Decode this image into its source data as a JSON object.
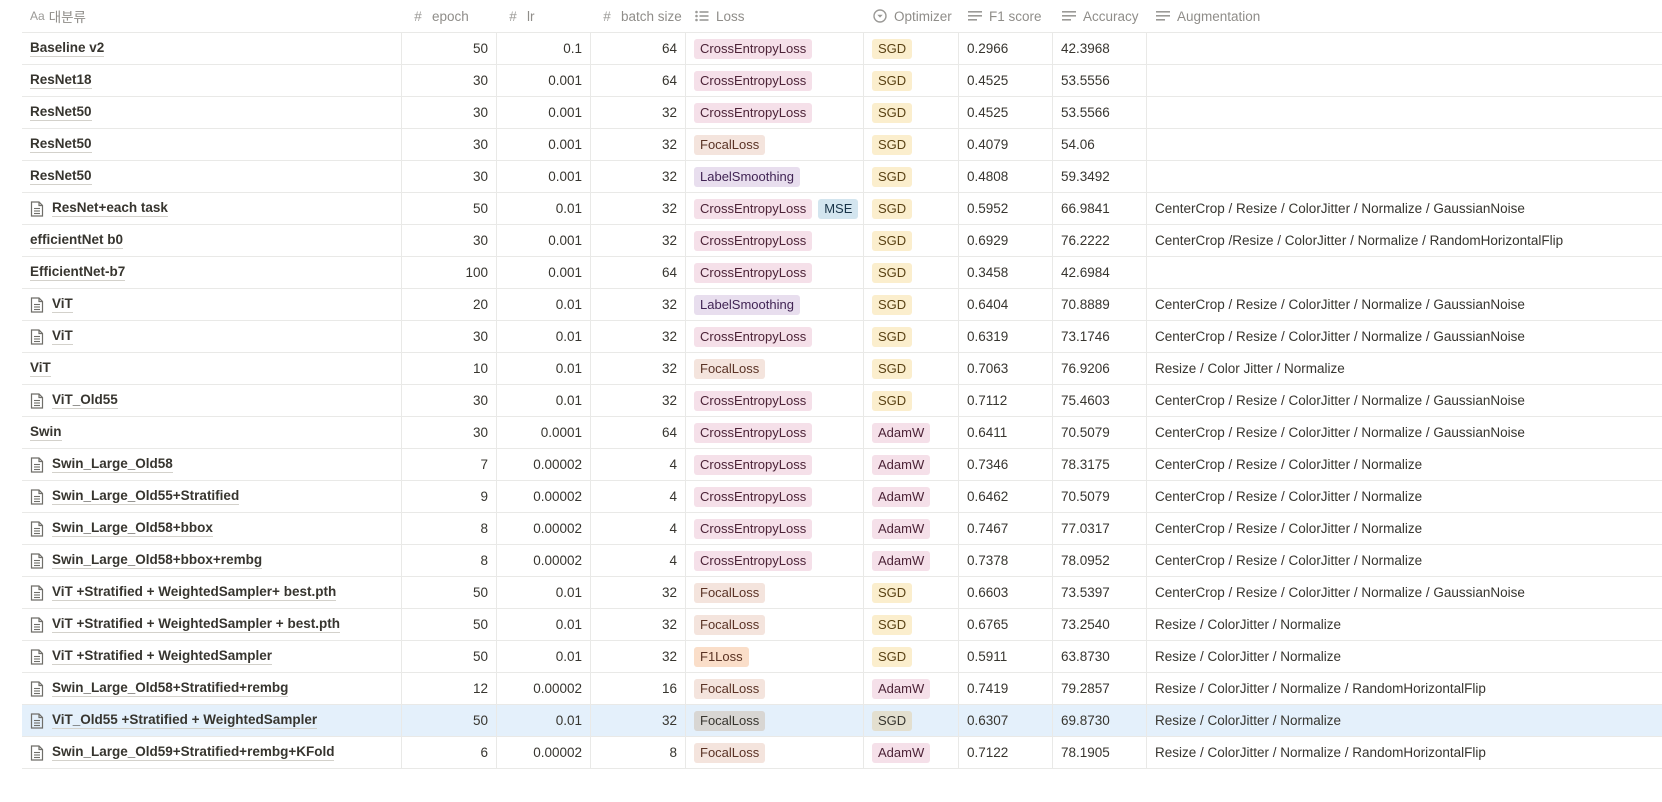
{
  "columns": [
    {
      "key": "name",
      "label": "대분류",
      "icon": "title-icon"
    },
    {
      "key": "epoch",
      "label": "epoch",
      "icon": "number-icon"
    },
    {
      "key": "lr",
      "label": "lr",
      "icon": "number-icon"
    },
    {
      "key": "batch_size",
      "label": "batch size",
      "icon": "number-icon"
    },
    {
      "key": "loss",
      "label": "Loss",
      "icon": "multi-select-icon"
    },
    {
      "key": "optimizer",
      "label": "Optimizer",
      "icon": "select-icon"
    },
    {
      "key": "f1",
      "label": "F1 score",
      "icon": "text-icon"
    },
    {
      "key": "accuracy",
      "label": "Accuracy",
      "icon": "text-icon"
    },
    {
      "key": "augmentation",
      "label": "Augmentation",
      "icon": "text-icon"
    }
  ],
  "header": {
    "title_prefix": "Aa"
  },
  "rows": [
    {
      "name": "Baseline v2",
      "doc": false,
      "epoch": "50",
      "lr": "0.1",
      "batch_size": "64",
      "loss": [
        "CrossEntropyLoss"
      ],
      "optimizer": "SGD",
      "f1": "0.2966",
      "accuracy": "42.3968",
      "augmentation": ""
    },
    {
      "name": "ResNet18",
      "doc": false,
      "epoch": "30",
      "lr": "0.001",
      "batch_size": "64",
      "loss": [
        "CrossEntropyLoss"
      ],
      "optimizer": "SGD",
      "f1": "0.4525",
      "accuracy": "53.5556",
      "augmentation": ""
    },
    {
      "name": "ResNet50",
      "doc": false,
      "epoch": "30",
      "lr": "0.001",
      "batch_size": "32",
      "loss": [
        "CrossEntropyLoss"
      ],
      "optimizer": "SGD",
      "f1": "0.4525",
      "accuracy": "53.5566",
      "augmentation": ""
    },
    {
      "name": "ResNet50",
      "doc": false,
      "epoch": "30",
      "lr": "0.001",
      "batch_size": "32",
      "loss": [
        "FocalLoss"
      ],
      "optimizer": "SGD",
      "f1": "0.4079",
      "accuracy": "54.06",
      "augmentation": ""
    },
    {
      "name": "ResNet50",
      "doc": false,
      "epoch": "30",
      "lr": "0.001",
      "batch_size": "32",
      "loss": [
        "LabelSmoothing"
      ],
      "optimizer": "SGD",
      "f1": "0.4808",
      "accuracy": "59.3492",
      "augmentation": ""
    },
    {
      "name": "ResNet+each task",
      "doc": true,
      "epoch": "50",
      "lr": "0.01",
      "batch_size": "32",
      "loss": [
        "CrossEntropyLoss",
        "MSE"
      ],
      "optimizer": "SGD",
      "f1": "0.5952",
      "accuracy": "66.9841",
      "augmentation": "CenterCrop / Resize / ColorJitter / Normalize / GaussianNoise"
    },
    {
      "name": "efficientNet b0",
      "doc": false,
      "epoch": "30",
      "lr": "0.001",
      "batch_size": "32",
      "loss": [
        "CrossEntropyLoss"
      ],
      "optimizer": "SGD",
      "f1": "0.6929",
      "accuracy": "76.2222",
      "augmentation": "CenterCrop  /Resize / ColorJitter / Normalize / RandomHorizontalFlip"
    },
    {
      "name": "EfficientNet-b7",
      "doc": false,
      "epoch": "100",
      "lr": "0.001",
      "batch_size": "64",
      "loss": [
        "CrossEntropyLoss"
      ],
      "optimizer": "SGD",
      "f1": "0.3458",
      "accuracy": "42.6984",
      "augmentation": ""
    },
    {
      "name": "ViT",
      "doc": true,
      "epoch": "20",
      "lr": "0.01",
      "batch_size": "32",
      "loss": [
        "LabelSmoothing"
      ],
      "optimizer": "SGD",
      "f1": "0.6404",
      "accuracy": "70.8889",
      "augmentation": "CenterCrop / Resize / ColorJitter / Normalize / GaussianNoise"
    },
    {
      "name": "ViT",
      "doc": true,
      "epoch": "30",
      "lr": "0.01",
      "batch_size": "32",
      "loss": [
        "CrossEntropyLoss"
      ],
      "optimizer": "SGD",
      "f1": "0.6319",
      "accuracy": "73.1746",
      "augmentation": "CenterCrop / Resize / ColorJitter / Normalize / GaussianNoise"
    },
    {
      "name": "ViT",
      "doc": false,
      "epoch": "10",
      "lr": "0.01",
      "batch_size": "32",
      "loss": [
        "FocalLoss"
      ],
      "optimizer": "SGD",
      "f1": "0.7063",
      "accuracy": "76.9206",
      "augmentation": "Resize / Color Jitter / Normalize"
    },
    {
      "name": "ViT_Old55",
      "doc": true,
      "epoch": "30",
      "lr": "0.01",
      "batch_size": "32",
      "loss": [
        "CrossEntropyLoss"
      ],
      "optimizer": "SGD",
      "f1": "0.7112",
      "accuracy": "75.4603",
      "augmentation": "CenterCrop / Resize / ColorJitter / Normalize / GaussianNoise"
    },
    {
      "name": "Swin",
      "doc": false,
      "epoch": "30",
      "lr": "0.0001",
      "batch_size": "64",
      "loss": [
        "CrossEntropyLoss"
      ],
      "optimizer": "AdamW",
      "f1": "0.6411",
      "accuracy": "70.5079",
      "augmentation": "CenterCrop / Resize / ColorJitter / Normalize / GaussianNoise"
    },
    {
      "name": "Swin_Large_Old58",
      "doc": true,
      "epoch": "7",
      "lr": "0.00002",
      "batch_size": "4",
      "loss": [
        "CrossEntropyLoss"
      ],
      "optimizer": "AdamW",
      "f1": "0.7346",
      "accuracy": "78.3175",
      "augmentation": "CenterCrop / Resize / ColorJitter / Normalize"
    },
    {
      "name": "Swin_Large_Old55+Stratified",
      "doc": true,
      "epoch": "9",
      "lr": "0.00002",
      "batch_size": "4",
      "loss": [
        "CrossEntropyLoss"
      ],
      "optimizer": "AdamW",
      "f1": "0.6462",
      "accuracy": "70.5079",
      "augmentation": "CenterCrop / Resize / ColorJitter / Normalize"
    },
    {
      "name": "Swin_Large_Old58+bbox",
      "doc": true,
      "epoch": "8",
      "lr": "0.00002",
      "batch_size": "4",
      "loss": [
        "CrossEntropyLoss"
      ],
      "optimizer": "AdamW",
      "f1": "0.7467",
      "accuracy": "77.0317",
      "augmentation": "CenterCrop / Resize / ColorJitter / Normalize"
    },
    {
      "name": "Swin_Large_Old58+bbox+rembg",
      "doc": true,
      "epoch": "8",
      "lr": "0.00002",
      "batch_size": "4",
      "loss": [
        "CrossEntropyLoss"
      ],
      "optimizer": "AdamW",
      "f1": "0.7378",
      "accuracy": "78.0952",
      "augmentation": "CenterCrop / Resize / ColorJitter / Normalize"
    },
    {
      "name": "ViT +Stratified + WeightedSampler+ best.pth",
      "doc": true,
      "epoch": "50",
      "lr": "0.01",
      "batch_size": "32",
      "loss": [
        "FocalLoss"
      ],
      "optimizer": "SGD",
      "f1": "0.6603",
      "accuracy": "73.5397",
      "augmentation": "CenterCrop / Resize / ColorJitter / Normalize / GaussianNoise"
    },
    {
      "name": "ViT +Stratified + WeightedSampler + best.pth",
      "doc": true,
      "epoch": "50",
      "lr": "0.01",
      "batch_size": "32",
      "loss": [
        "FocalLoss"
      ],
      "optimizer": "SGD",
      "f1": "0.6765",
      "accuracy": "73.2540",
      "augmentation": "Resize / ColorJitter / Normalize"
    },
    {
      "name": "ViT +Stratified + WeightedSampler",
      "doc": true,
      "epoch": "50",
      "lr": "0.01",
      "batch_size": "32",
      "loss": [
        "F1Loss"
      ],
      "optimizer": "SGD",
      "f1": "0.5911",
      "accuracy": "63.8730",
      "augmentation": "Resize / ColorJitter / Normalize"
    },
    {
      "name": "Swin_Large_Old58+Stratified+rembg",
      "doc": true,
      "epoch": "12",
      "lr": "0.00002",
      "batch_size": "16",
      "loss": [
        "FocalLoss"
      ],
      "optimizer": "AdamW",
      "f1": "0.7419",
      "accuracy": "79.2857",
      "augmentation": "Resize / ColorJitter / Normalize / RandomHorizontalFlip"
    },
    {
      "name": "ViT_Old55 +Stratified + WeightedSampler",
      "doc": true,
      "selected": true,
      "epoch": "50",
      "lr": "0.01",
      "batch_size": "32",
      "loss": [
        "FocalLoss"
      ],
      "optimizer": "SGD",
      "f1": "0.6307",
      "accuracy": "69.8730",
      "augmentation": "Resize / ColorJitter / Normalize"
    },
    {
      "name": "Swin_Large_Old59+Stratified+rembg+KFold",
      "doc": true,
      "epoch": "6",
      "lr": "0.00002",
      "batch_size": "8",
      "loss": [
        "FocalLoss"
      ],
      "optimizer": "AdamW",
      "f1": "0.7122",
      "accuracy": "78.1905",
      "augmentation": "Resize / ColorJitter / Normalize / RandomHorizontalFlip"
    }
  ]
}
